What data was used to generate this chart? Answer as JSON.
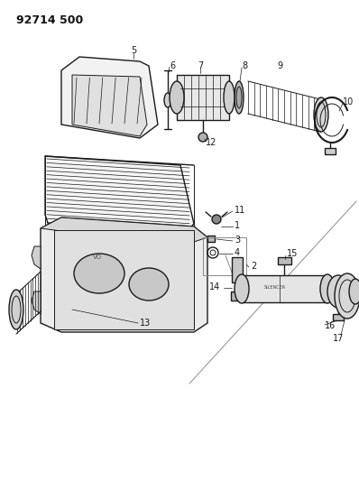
{
  "title": "92714 500",
  "background_color": "#ffffff",
  "line_color": "#1a1a1a",
  "figsize": [
    3.98,
    5.33
  ],
  "dpi": 100
}
